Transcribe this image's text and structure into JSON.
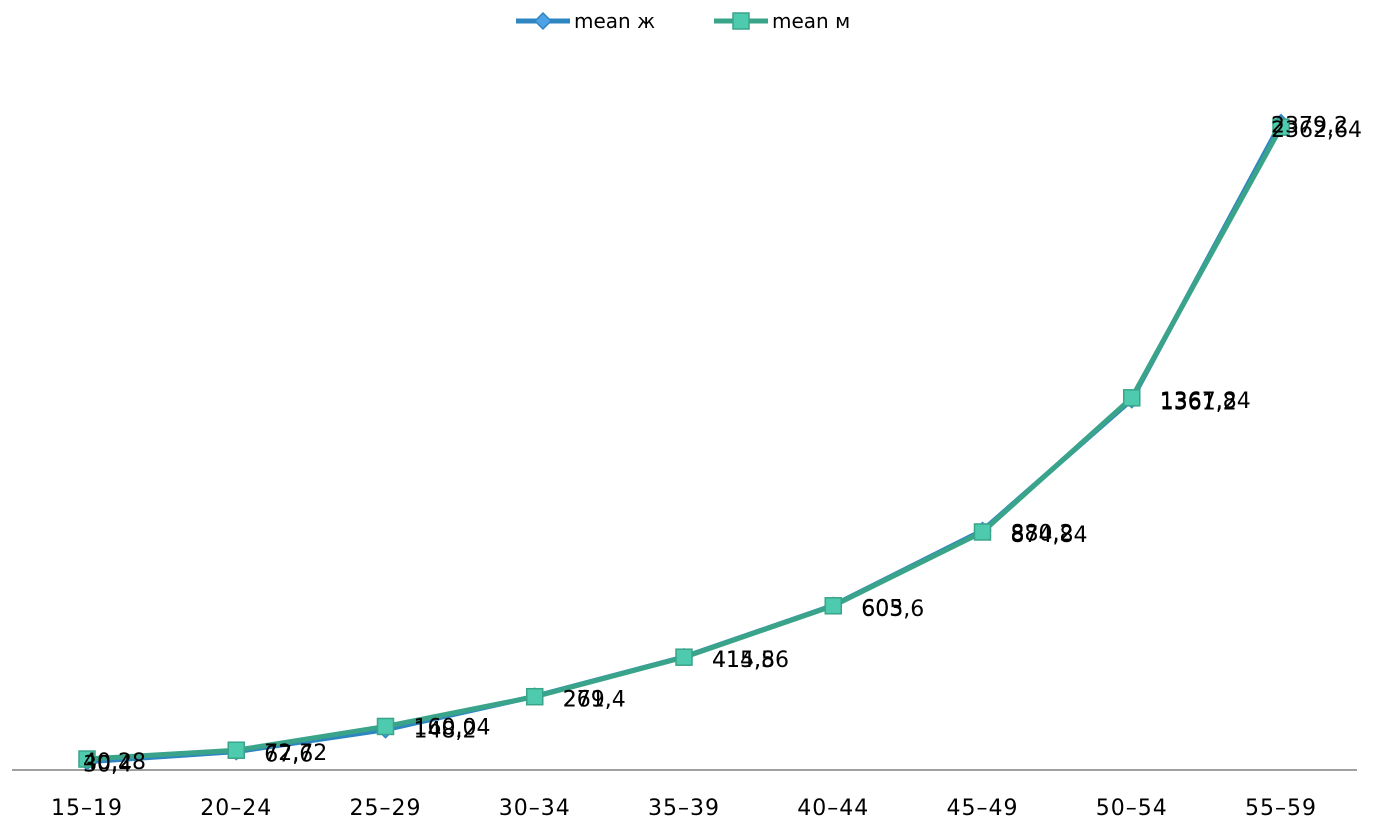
{
  "chart_data": {
    "type": "line",
    "categories": [
      "15–19",
      "20–24",
      "25–29",
      "30–34",
      "35–39",
      "40–44",
      "45–49",
      "50–54",
      "55–59"
    ],
    "series": [
      {
        "name": "mean ж",
        "values": [
          30.4,
          67.6,
          148.2,
          271,
          415.8,
          605,
          880.2,
          1361.2,
          2379.2
        ],
        "labels": [
          "30,4",
          "67,6",
          "148,2",
          "271",
          "415,8",
          "605",
          "880,2",
          "1361,2",
          "2379,2"
        ],
        "color": "#2E86C1",
        "marker_color": "#4DA3E6",
        "marker": "diamond"
      },
      {
        "name": "mean м",
        "values": [
          40.28,
          72.72,
          160.04,
          269.4,
          414.56,
          603.6,
          874.84,
          1367.84,
          2362.64
        ],
        "labels": [
          "40,28",
          "72,72",
          "160,04",
          "269,4",
          "414,56",
          "603,6",
          "874,84",
          "1367,84",
          "2362,64"
        ],
        "color": "#3AA48A",
        "marker_color": "#4ECBAE",
        "marker": "square"
      }
    ],
    "legend_position": "top-center",
    "grid": false
  }
}
